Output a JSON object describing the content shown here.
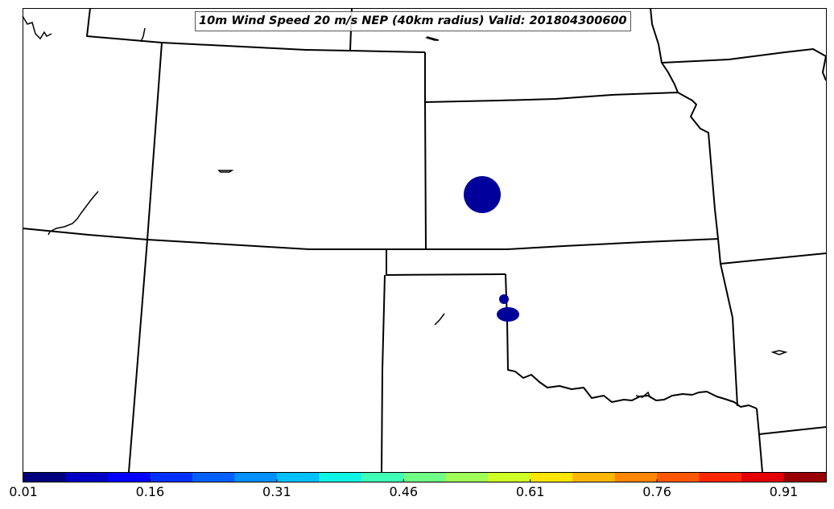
{
  "map": {
    "title": "10m Wind Speed 20 m/s NEP (40km radius) Valid: 201804300600",
    "feature_fill_color": "#00009a",
    "boundary_color": "#000000"
  },
  "colorbar": {
    "colors": [
      "#00007f",
      "#0000c4",
      "#0000ff",
      "#0030ff",
      "#0060ff",
      "#0090ff",
      "#00c0ff",
      "#10f4e6",
      "#40ffb6",
      "#70ff86",
      "#9fff57",
      "#cfff27",
      "#ffe500",
      "#ffb600",
      "#ff8600",
      "#ff5700",
      "#ff2700",
      "#e40000",
      "#9a0000"
    ],
    "tick_labels": [
      "0.01",
      "0.16",
      "0.31",
      "0.46",
      "0.61",
      "0.76",
      "0.91"
    ]
  }
}
